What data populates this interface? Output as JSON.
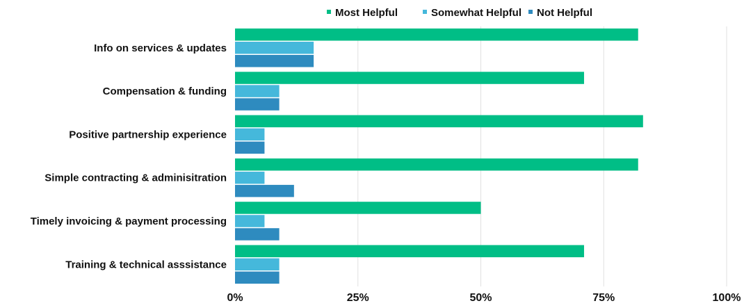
{
  "chart_data": {
    "type": "bar",
    "orientation": "horizontal",
    "categories": [
      "Info on services & updates",
      "Compensation & funding",
      "Positive partnership experience",
      "Simple contracting & adminisitration",
      "Timely invoicing & payment processing",
      "Training & technical asssistance"
    ],
    "series": [
      {
        "name": "Most Helpful",
        "color": "#00BE86",
        "values": [
          82,
          71,
          83,
          82,
          50,
          71
        ]
      },
      {
        "name": "Somewhat Helpful",
        "color": "#45B8DB",
        "values": [
          16,
          9,
          6,
          6,
          6,
          9
        ]
      },
      {
        "name": "Not Helpful",
        "color": "#2E8BBF",
        "values": [
          16,
          9,
          6,
          12,
          9,
          9
        ]
      }
    ],
    "xlim": [
      0,
      100
    ],
    "xticks": [
      0,
      25,
      50,
      75,
      100
    ],
    "xtick_labels": [
      "0%",
      "25%",
      "50%",
      "75%",
      "100%"
    ],
    "grid": "vertical",
    "legend_position": "top",
    "title": "",
    "xlabel": "",
    "ylabel": ""
  }
}
